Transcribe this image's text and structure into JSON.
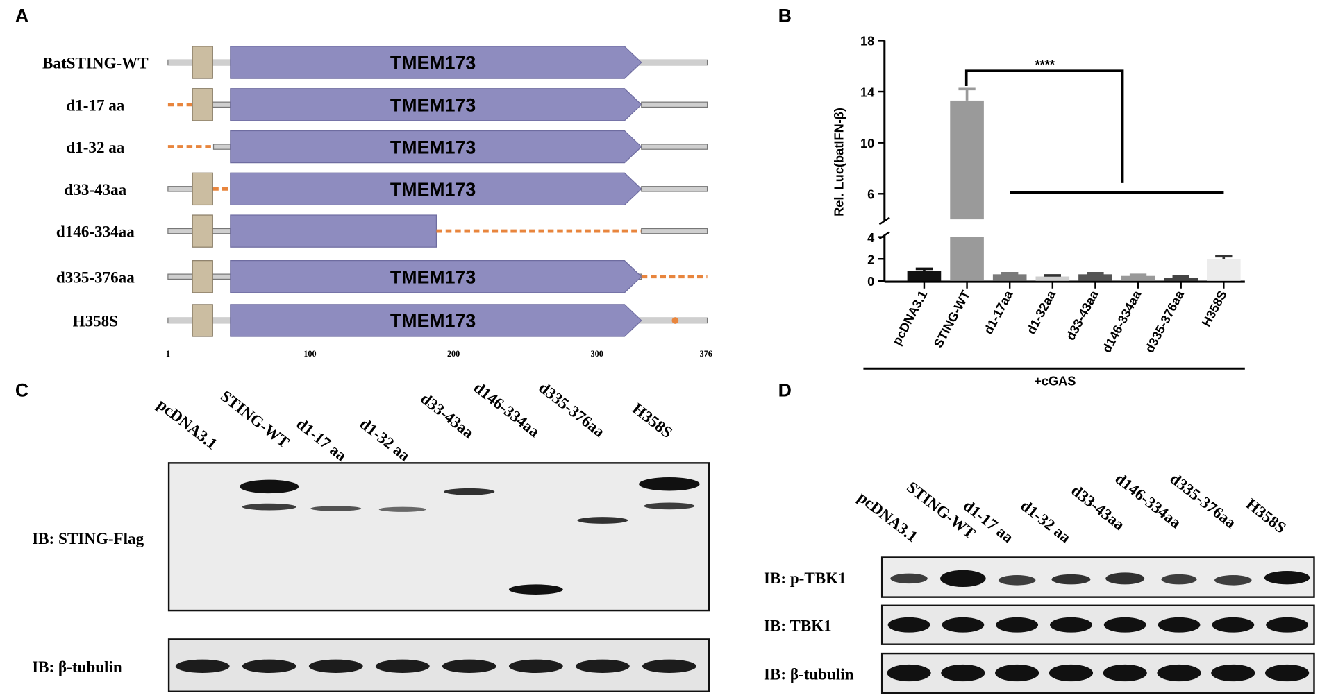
{
  "panels": {
    "a": "A",
    "b": "B",
    "c": "C",
    "d": "D"
  },
  "constructs": {
    "labels": [
      "BatSTING-WT",
      "d1-17 aa",
      "d1-32 aa",
      "d33-43aa",
      "d146-334aa",
      "d335-376aa",
      "H358S"
    ],
    "domain_label": "TMEM173",
    "scale_ticks": [
      1,
      100,
      200,
      300,
      376
    ]
  },
  "chart_data": {
    "type": "bar",
    "y_label": "Rel. Luc(batIFN-β)",
    "categories": [
      "pcDNA3.1",
      "STING-WT",
      "d1-17aa",
      "d1-32aa",
      "d33-43aa",
      "d146-334aa",
      "d335-376aa",
      "H358S"
    ],
    "values": [
      0.9,
      13.3,
      0.6,
      0.4,
      0.6,
      0.45,
      0.3,
      2.0
    ],
    "errors": [
      0.2,
      0.9,
      0.1,
      0.1,
      0.1,
      0.1,
      0.1,
      0.25
    ],
    "colors": [
      "#111111",
      "#9a9a9a",
      "#7a7a7a",
      "#cfcfcf",
      "#555555",
      "#999999",
      "#444444",
      "#ececec"
    ],
    "ylim_lower": [
      0,
      4
    ],
    "ylim_upper": [
      4,
      18
    ],
    "yticks": [
      0,
      2,
      4,
      6,
      10,
      14,
      18
    ],
    "significance": "****",
    "group_label": "+cGAS"
  },
  "blot_c": {
    "lanes": [
      "pcDNA3.1",
      "STING-WT",
      "d1-17 aa",
      "d1-32 aa",
      "d33-43aa",
      "d146-334aa",
      "d335-376aa",
      "H358S"
    ],
    "rows": [
      "IB: STING-Flag",
      "IB: β-tubulin"
    ]
  },
  "blot_d": {
    "lanes": [
      "pcDNA3.1",
      "STING-WT",
      "d1-17 aa",
      "d1-32 aa",
      "d33-43aa",
      "d146-334aa",
      "d335-376aa",
      "H358S"
    ],
    "rows": [
      "IB: p-TBK1",
      "IB: TBK1",
      "IB: β-tubulin"
    ]
  }
}
